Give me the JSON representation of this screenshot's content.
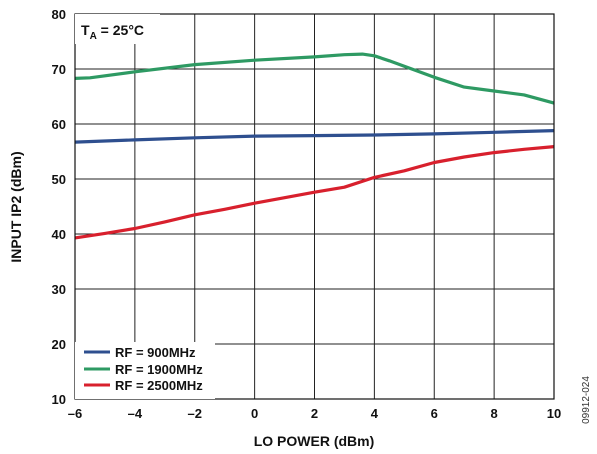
{
  "chart_data": {
    "type": "line",
    "title": "",
    "xlabel": "LO POWER (dBm)",
    "ylabel": "INPUT IP2 (dBm)",
    "xlim": [
      -6,
      10
    ],
    "ylim": [
      10,
      80
    ],
    "xticks": [
      -6,
      -4,
      -2,
      0,
      2,
      4,
      6,
      8,
      10
    ],
    "yticks": [
      10,
      20,
      30,
      40,
      50,
      60,
      70,
      80
    ],
    "xtick_labels": [
      "–6",
      "–4",
      "–2",
      "0",
      "2",
      "4",
      "6",
      "8",
      "10"
    ],
    "ytick_labels": [
      "10",
      "20",
      "30",
      "40",
      "50",
      "60",
      "70",
      "80"
    ],
    "grid": true,
    "legend_position": "bottom-left",
    "annotation": {
      "prefix": "T",
      "subscript": "A",
      "suffix": " = 25°C"
    },
    "figure_id": "09912-024",
    "series": [
      {
        "name": "RF = 900MHz",
        "color": "#2e4f8f",
        "x": [
          -6,
          -4,
          -2,
          0,
          2,
          4,
          6,
          8,
          10
        ],
        "y": [
          56.7,
          57.1,
          57.5,
          57.8,
          57.9,
          58.0,
          58.2,
          58.5,
          58.8
        ]
      },
      {
        "name": "RF = 1900MHz",
        "color": "#2e9a63",
        "x": [
          -6,
          -5.5,
          -4,
          -2,
          0,
          2,
          3,
          3.6,
          4,
          4.5,
          5,
          6,
          7,
          8,
          9,
          10
        ],
        "y": [
          68.3,
          68.4,
          69.5,
          70.8,
          71.6,
          72.2,
          72.6,
          72.7,
          72.4,
          71.5,
          70.5,
          68.5,
          66.7,
          66.0,
          65.3,
          63.8
        ]
      },
      {
        "name": "RF = 2500MHz",
        "color": "#d8202d",
        "x": [
          -6,
          -5,
          -4,
          -3,
          -2,
          -1,
          0,
          1,
          2,
          3,
          4,
          5,
          6,
          7,
          8,
          9,
          10
        ],
        "y": [
          39.3,
          40.1,
          41.0,
          42.2,
          43.5,
          44.5,
          45.6,
          46.6,
          47.6,
          48.5,
          50.3,
          51.5,
          53.0,
          54.0,
          54.8,
          55.4,
          55.9
        ]
      }
    ]
  }
}
